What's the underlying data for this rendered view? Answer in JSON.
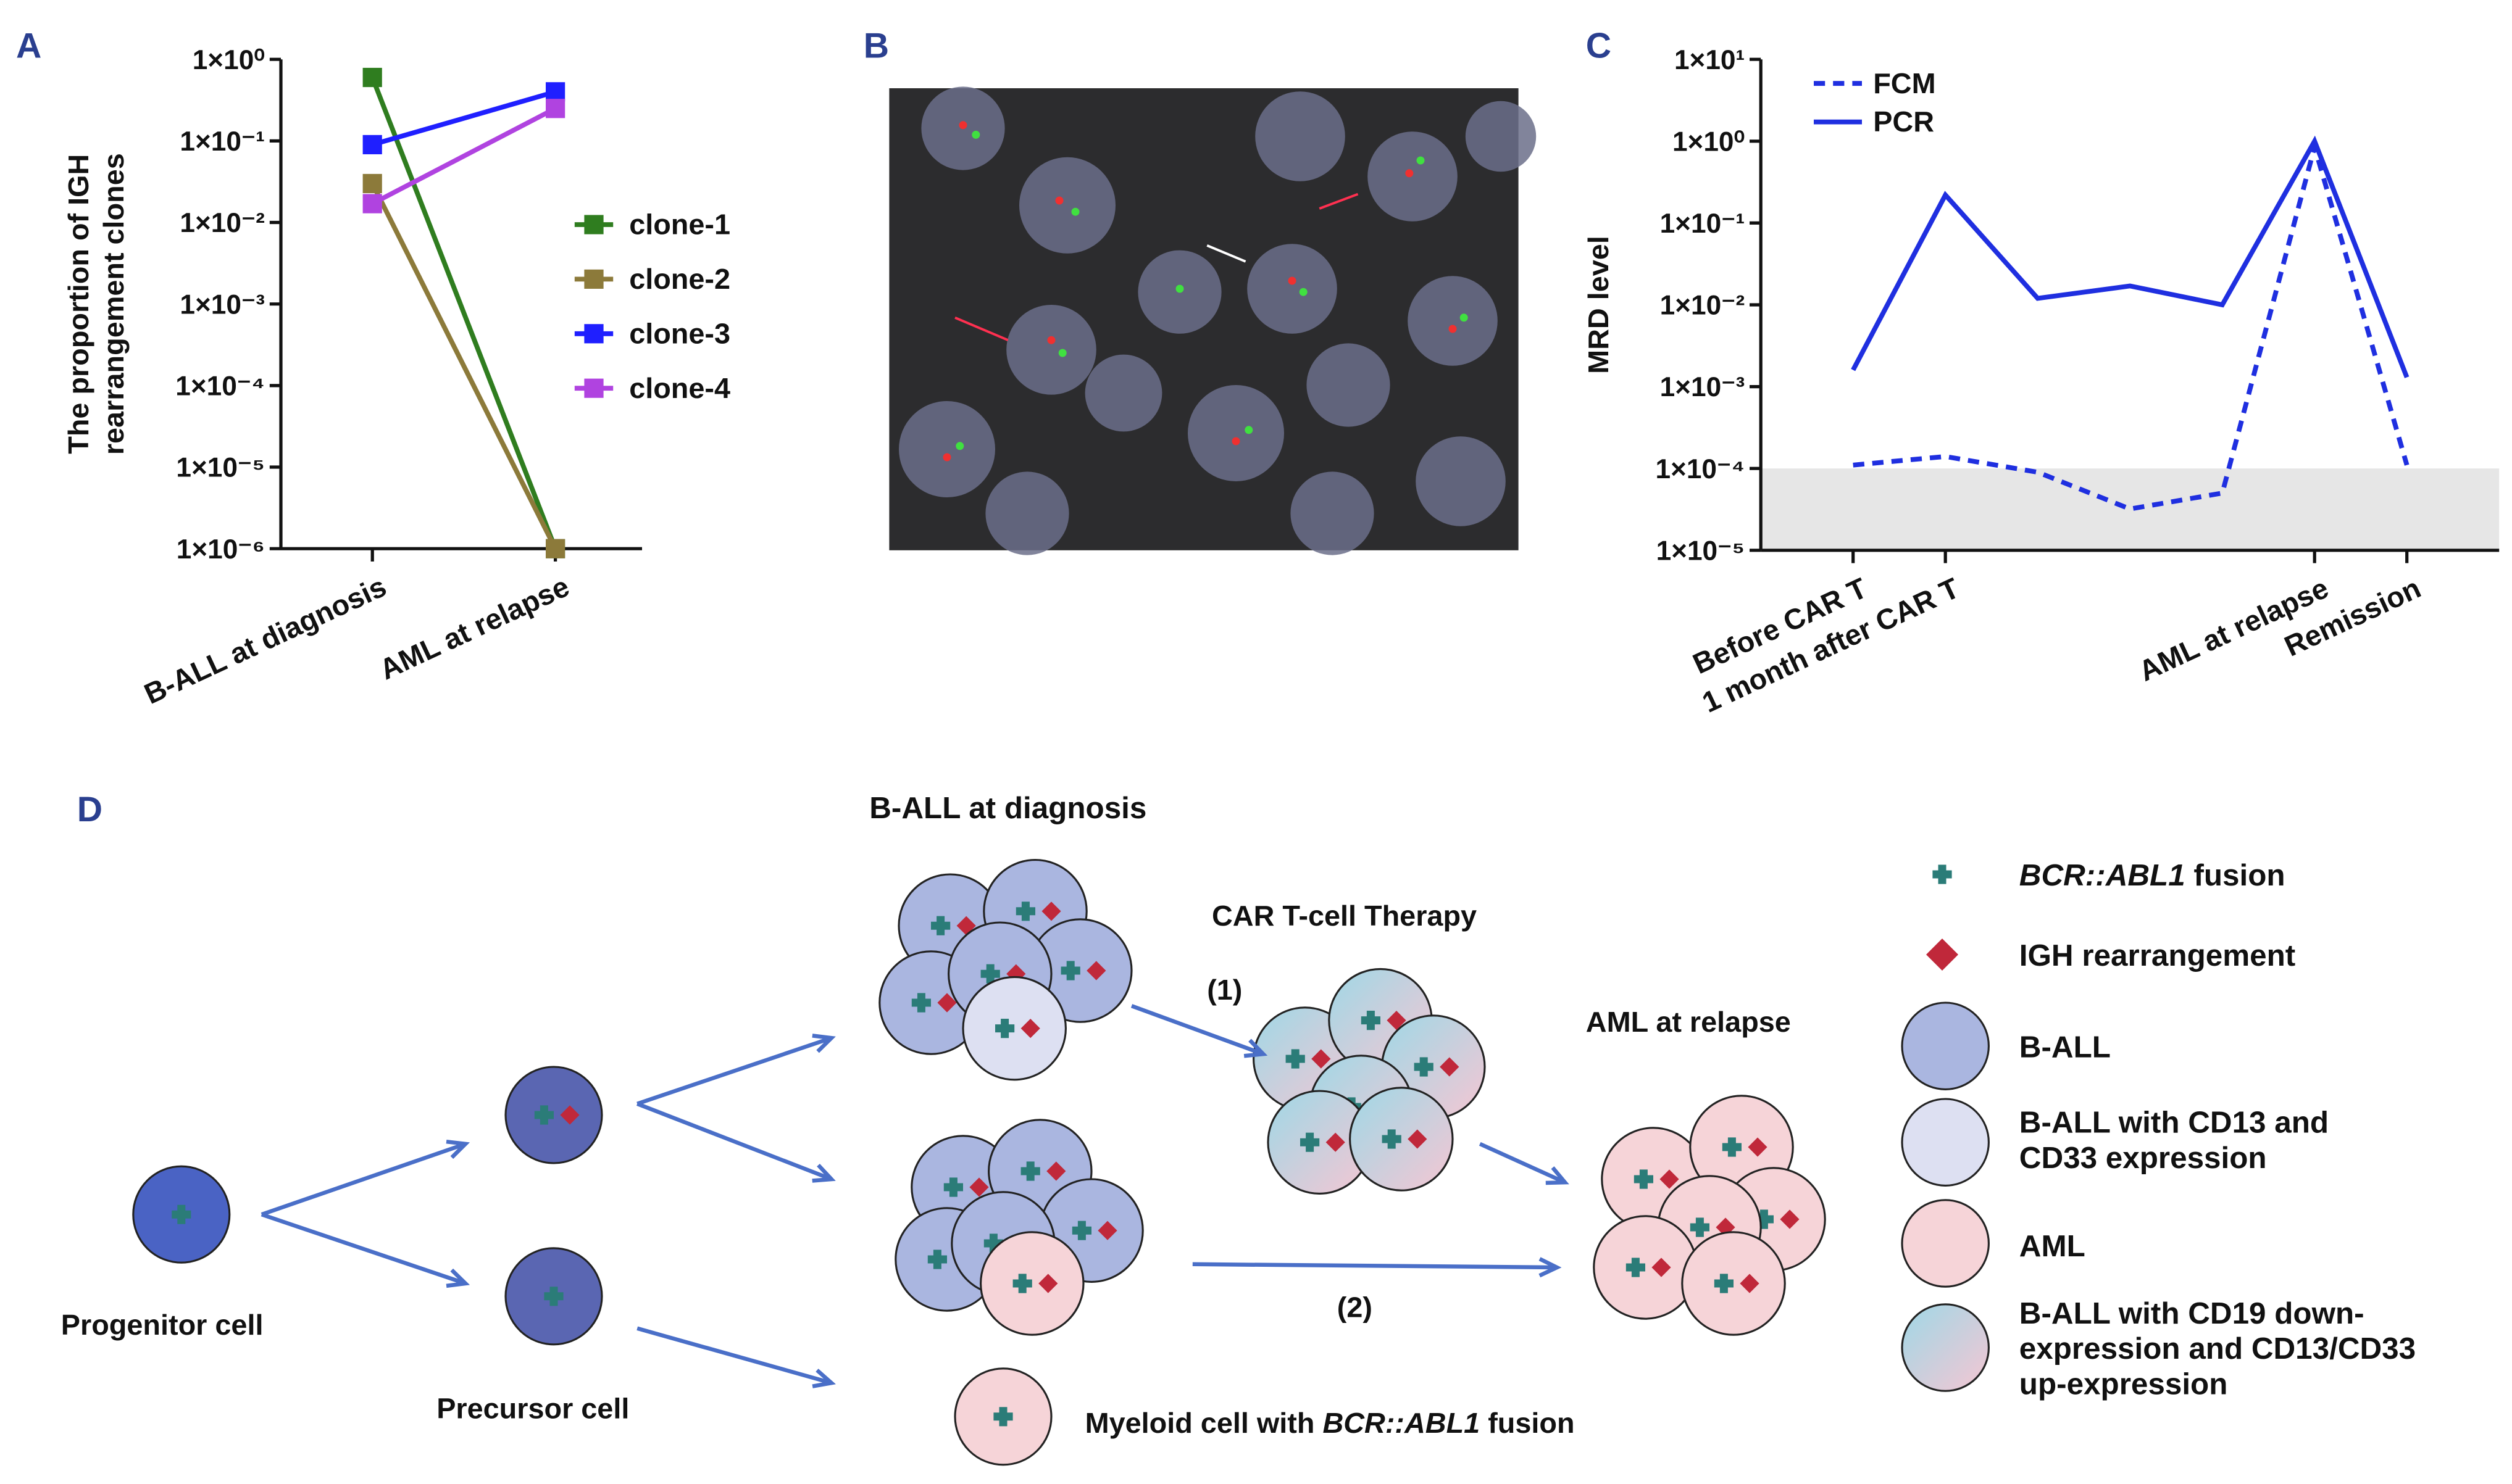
{
  "panel_labels": [
    "A",
    "B",
    "C",
    "D"
  ],
  "chart_data": [
    {
      "type": "line",
      "log": true,
      "y_label": [
        "The proportion of IGH",
        "rearrangement clones"
      ],
      "categories": [
        "B-ALL at diagnosis",
        "AML at relapse"
      ],
      "series": [
        {
          "name": "clone-1",
          "color": "#2f7d1f",
          "values": [
            0.6,
            1e-06
          ]
        },
        {
          "name": "clone-2",
          "color": "#8c7a3a",
          "values": [
            0.03,
            1e-06
          ]
        },
        {
          "name": "clone-3",
          "color": "#1f1fff",
          "values": [
            0.09,
            0.4
          ]
        },
        {
          "name": "clone-4",
          "color": "#b043e0",
          "values": [
            0.017,
            0.25
          ]
        }
      ],
      "ylim": [
        1e-06,
        1
      ],
      "yticks": [
        {
          "value": 1e-06,
          "label": "1×10⁻⁶"
        },
        {
          "value": 1e-05,
          "label": "1×10⁻⁵"
        },
        {
          "value": 0.0001,
          "label": "1×10⁻⁴"
        },
        {
          "value": 0.001,
          "label": "1×10⁻³"
        },
        {
          "value": 0.01,
          "label": "1×10⁻²"
        },
        {
          "value": 0.1,
          "label": "1×10⁻¹"
        },
        {
          "value": 1,
          "label": "1×10⁰"
        }
      ],
      "legend": "right"
    },
    {
      "type": "line",
      "log": true,
      "y_label": [
        "MRD level"
      ],
      "categories": [
        "Before CAR T",
        "1 month after CAR T",
        null,
        null,
        null,
        "AML at relapse",
        "Remission"
      ],
      "series": [
        {
          "name": "FCM",
          "color": "#1f2fe0",
          "dash": true,
          "values": [
            0.00011,
            0.00014,
            9e-05,
            3.2e-05,
            5e-05,
            0.85,
            0.00011
          ]
        },
        {
          "name": "PCR",
          "color": "#1f2fe0",
          "dash": false,
          "values": [
            0.0016,
            0.22,
            0.012,
            0.017,
            0.01,
            1.0,
            0.0013
          ]
        }
      ],
      "shade_below": 0.0001,
      "ylim": [
        1e-05,
        10
      ],
      "yticks": [
        {
          "value": 1e-05,
          "label": "1×10⁻⁵"
        },
        {
          "value": 0.0001,
          "label": "1×10⁻⁴"
        },
        {
          "value": 0.001,
          "label": "1×10⁻³"
        },
        {
          "value": 0.01,
          "label": "1×10⁻²"
        },
        {
          "value": 0.1,
          "label": "1×10⁻¹"
        },
        {
          "value": 1,
          "label": "1×10⁰"
        },
        {
          "value": 10,
          "label": "1×10¹"
        }
      ],
      "legend": "upper left"
    }
  ],
  "diagram": {
    "labels": {
      "diagnosis": "B-ALL at diagnosis",
      "therapy": "CAR T-cell Therapy",
      "path1": "(1)",
      "path2": "(2)",
      "relapse": "AML at relapse",
      "progenitor": "Progenitor cell",
      "precursor": "Precursor cell",
      "myeloid": [
        "Myeloid cell with ",
        "BCR::ABL1",
        " fusion"
      ]
    },
    "legend": [
      {
        "parts": [
          "BCR::ABL1",
          " fusion"
        ]
      },
      {
        "lines": [
          "IGH rearrangement"
        ]
      },
      {
        "lines": [
          "B-ALL"
        ]
      },
      {
        "lines": [
          "B-ALL with CD13 and",
          "CD33 expression"
        ]
      },
      {
        "lines": [
          "AML"
        ]
      },
      {
        "lines": [
          "B-ALL with CD19 down-",
          "expression and CD13/CD33",
          "up-expression"
        ]
      }
    ]
  }
}
